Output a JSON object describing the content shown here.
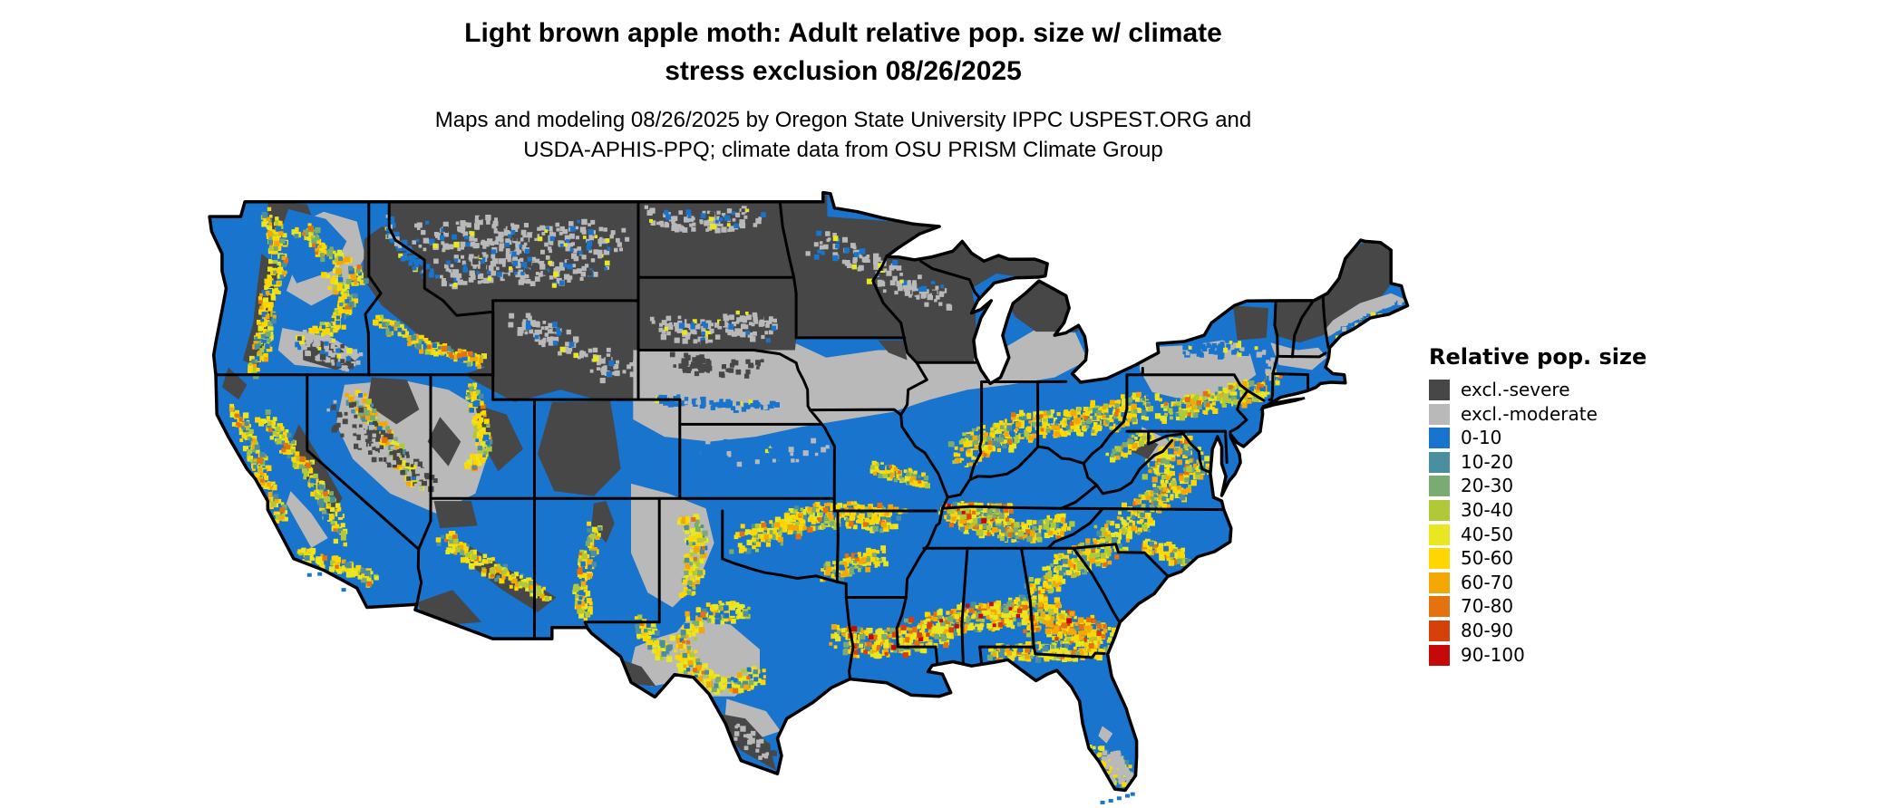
{
  "title": {
    "line1": "Light brown apple moth: Adult relative pop. size w/ climate",
    "line2": "stress exclusion 08/26/2025"
  },
  "subtitle": {
    "line1": "Maps and modeling 08/26/2025 by Oregon State University IPPC USPEST.ORG and",
    "line2": "USDA-APHIS-PPQ; climate data from OSU PRISM Climate Group"
  },
  "legend": {
    "title": "Relative pop. size",
    "items": [
      {
        "label": "excl.-severe",
        "color_key": "excl_severe"
      },
      {
        "label": "excl.-moderate",
        "color_key": "excl_moderate"
      },
      {
        "label": "0-10",
        "color_key": "c0_10"
      },
      {
        "label": "10-20",
        "color_key": "c10_20"
      },
      {
        "label": "20-30",
        "color_key": "c20_30"
      },
      {
        "label": "30-40",
        "color_key": "c30_40"
      },
      {
        "label": "40-50",
        "color_key": "c40_50"
      },
      {
        "label": "50-60",
        "color_key": "c50_60"
      },
      {
        "label": "60-70",
        "color_key": "c60_70"
      },
      {
        "label": "70-80",
        "color_key": "c70_80"
      },
      {
        "label": "80-90",
        "color_key": "c80_90"
      },
      {
        "label": "90-100",
        "color_key": "c90_100"
      }
    ]
  },
  "map": {
    "region": "Contiguous United States",
    "background_color": "#ffffff",
    "state_border_color": "#000000",
    "water_color": "#ffffff",
    "colors": {
      "excl_severe": "#474747",
      "excl_moderate": "#b9b9b9",
      "c0_10": "#1874cd",
      "c10_20": "#4a8fa0",
      "c20_30": "#79ab72",
      "c30_40": "#b1c939",
      "c40_50": "#e9e622",
      "c50_60": "#ffd700",
      "c60_70": "#f4a805",
      "c70_80": "#e4720e",
      "c80_90": "#d6400a",
      "c90_100": "#c50808"
    }
  }
}
